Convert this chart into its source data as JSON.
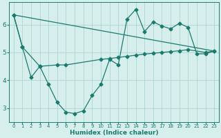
{
  "xlabel": "Humidex (Indice chaleur)",
  "background_color": "#d6eeec",
  "grid_color": "#aed4d0",
  "line_color": "#1a7a6e",
  "xlim": [
    -0.5,
    23.5
  ],
  "ylim": [
    2.5,
    6.8
  ],
  "yticks": [
    3,
    4,
    5,
    6
  ],
  "xticks": [
    0,
    1,
    2,
    3,
    4,
    5,
    6,
    7,
    8,
    9,
    10,
    11,
    12,
    13,
    14,
    15,
    16,
    17,
    18,
    19,
    20,
    21,
    22,
    23
  ],
  "line1_x": [
    0,
    1,
    2,
    3,
    4,
    5,
    6,
    7,
    8,
    9,
    10,
    11,
    12,
    13,
    14,
    15,
    16,
    17,
    18,
    19,
    20,
    21,
    22,
    23
  ],
  "line1_y": [
    6.35,
    5.2,
    4.1,
    4.5,
    3.85,
    3.2,
    2.85,
    2.8,
    2.9,
    3.45,
    3.85,
    4.75,
    4.55,
    6.2,
    6.55,
    5.75,
    6.1,
    5.95,
    5.85,
    6.05,
    5.9,
    4.95,
    4.95,
    5.05
  ],
  "line2_x": [
    0,
    1,
    3,
    5,
    6,
    10,
    11,
    12,
    13,
    14,
    15,
    16,
    17,
    18,
    19,
    20,
    22,
    23
  ],
  "line2_y": [
    6.35,
    5.2,
    4.5,
    4.55,
    4.55,
    4.75,
    4.78,
    4.82,
    4.86,
    4.9,
    4.94,
    4.97,
    5.0,
    5.03,
    5.06,
    5.1,
    5.0,
    5.05
  ],
  "line3_x": [
    0,
    23
  ],
  "line3_y": [
    6.35,
    5.05
  ],
  "markersize": 2.5,
  "linewidth": 0.9
}
